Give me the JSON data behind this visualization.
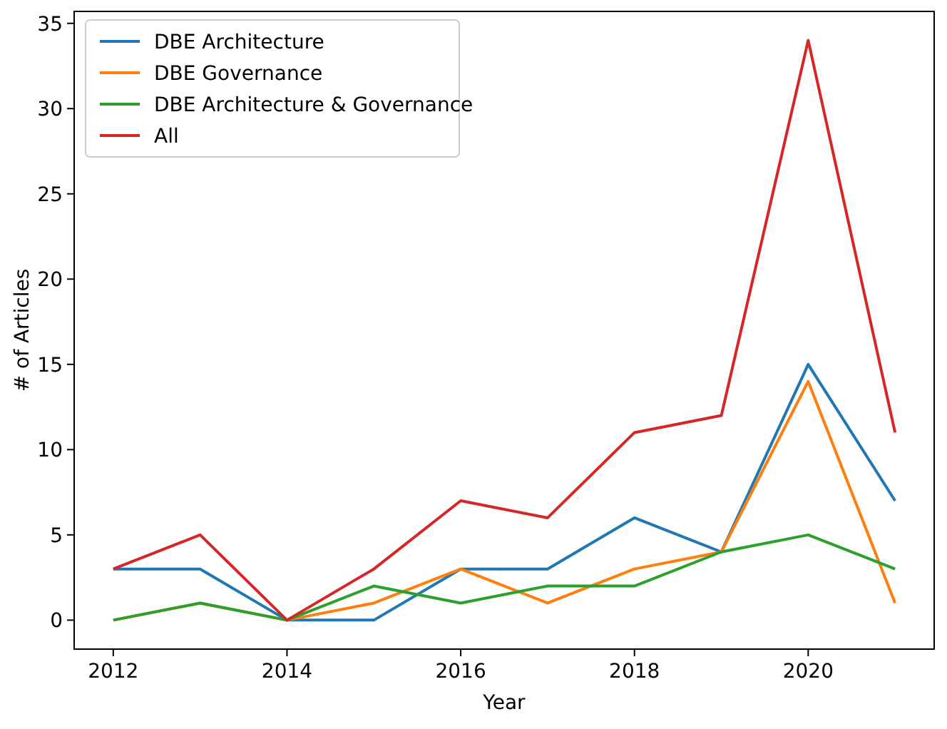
{
  "chart_data": {
    "type": "line",
    "xlabel": "Year",
    "ylabel": "# of Articles",
    "x": [
      2012,
      2013,
      2014,
      2015,
      2016,
      2017,
      2018,
      2019,
      2020,
      2021
    ],
    "xlim": [
      2011.55,
      2021.45
    ],
    "ylim": [
      -1.7,
      35.7
    ],
    "xticks": [
      2012,
      2014,
      2016,
      2018,
      2020
    ],
    "yticks": [
      0,
      5,
      10,
      15,
      20,
      25,
      30,
      35
    ],
    "legend": "top left",
    "grid": false,
    "marker": "none",
    "line_style": "solid",
    "series": [
      {
        "name": "DBE Architecture",
        "color": "#1f77b4",
        "values": [
          3,
          3,
          0,
          0,
          3,
          3,
          6,
          4,
          15,
          7
        ]
      },
      {
        "name": "DBE Governance",
        "color": "#ff7f0e",
        "values": [
          0,
          1,
          0,
          1,
          3,
          1,
          3,
          4,
          14,
          1
        ]
      },
      {
        "name": "DBE Architecture & Governance",
        "color": "#2ca02c",
        "values": [
          0,
          1,
          0,
          2,
          1,
          2,
          2,
          4,
          5,
          3
        ]
      },
      {
        "name": "All",
        "color": "#d62728",
        "values": [
          3,
          5,
          0,
          3,
          7,
          6,
          11,
          12,
          34,
          11
        ]
      }
    ]
  }
}
